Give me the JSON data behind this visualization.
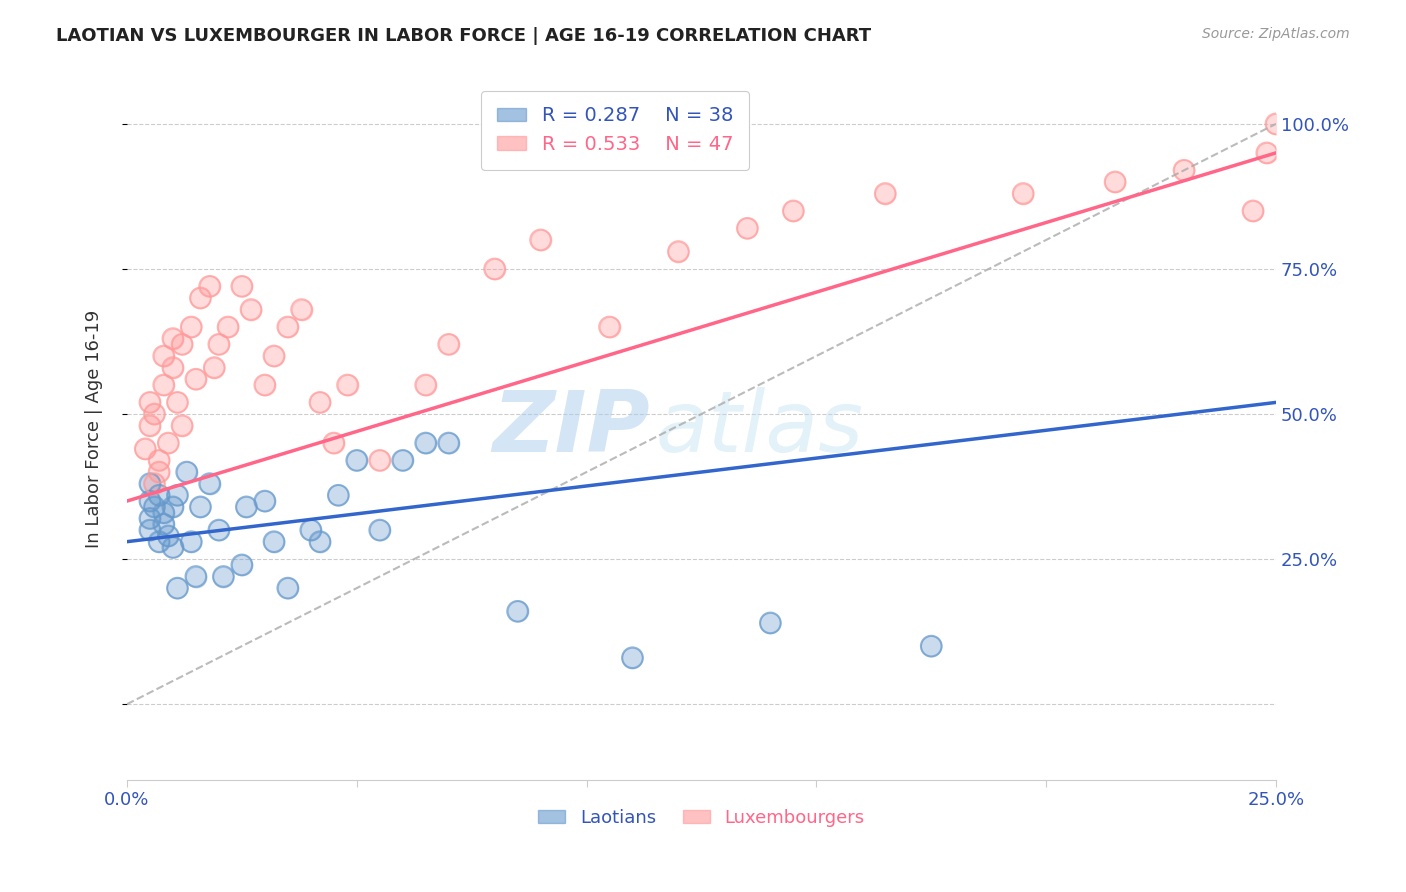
{
  "title": "LAOTIAN VS LUXEMBOURGER IN LABOR FORCE | AGE 16-19 CORRELATION CHART",
  "source": "Source: ZipAtlas.com",
  "ylabel": "In Labor Force | Age 16-19",
  "xmin": 0.0,
  "xmax": 0.25,
  "ymin": -0.13,
  "ymax": 1.08,
  "yticks": [
    0.0,
    0.25,
    0.5,
    0.75,
    1.0
  ],
  "ytick_labels": [
    "",
    "25.0%",
    "50.0%",
    "75.0%",
    "100.0%"
  ],
  "xticks": [
    0.0,
    0.05,
    0.1,
    0.15,
    0.2,
    0.25
  ],
  "xtick_labels": [
    "0.0%",
    "",
    "",
    "",
    "",
    "25.0%"
  ],
  "legend_r1": "R = 0.287",
  "legend_n1": "N = 38",
  "legend_r2": "R = 0.533",
  "legend_n2": "N = 47",
  "blue_color": "#6699CC",
  "pink_color": "#FF9999",
  "axis_color": "#3355BB",
  "watermark_zip": "ZIP",
  "watermark_atlas": "atlas",
  "blue_scatter_x": [
    0.005,
    0.005,
    0.005,
    0.005,
    0.006,
    0.007,
    0.007,
    0.008,
    0.008,
    0.009,
    0.01,
    0.01,
    0.011,
    0.011,
    0.013,
    0.014,
    0.015,
    0.016,
    0.018,
    0.02,
    0.021,
    0.025,
    0.026,
    0.03,
    0.032,
    0.035,
    0.04,
    0.042,
    0.046,
    0.05,
    0.055,
    0.06,
    0.065,
    0.07,
    0.085,
    0.11,
    0.14,
    0.175
  ],
  "blue_scatter_y": [
    0.32,
    0.38,
    0.35,
    0.3,
    0.34,
    0.28,
    0.36,
    0.33,
    0.31,
    0.29,
    0.34,
    0.27,
    0.2,
    0.36,
    0.4,
    0.28,
    0.22,
    0.34,
    0.38,
    0.3,
    0.22,
    0.24,
    0.34,
    0.35,
    0.28,
    0.2,
    0.3,
    0.28,
    0.36,
    0.42,
    0.3,
    0.42,
    0.45,
    0.45,
    0.16,
    0.08,
    0.14,
    0.1
  ],
  "pink_scatter_x": [
    0.004,
    0.005,
    0.005,
    0.006,
    0.006,
    0.007,
    0.007,
    0.008,
    0.008,
    0.009,
    0.01,
    0.01,
    0.011,
    0.012,
    0.012,
    0.014,
    0.015,
    0.016,
    0.018,
    0.019,
    0.02,
    0.022,
    0.025,
    0.027,
    0.03,
    0.032,
    0.035,
    0.038,
    0.042,
    0.045,
    0.048,
    0.055,
    0.065,
    0.07,
    0.08,
    0.09,
    0.105,
    0.12,
    0.135,
    0.145,
    0.165,
    0.195,
    0.215,
    0.23,
    0.245,
    0.248,
    0.25
  ],
  "pink_scatter_y": [
    0.44,
    0.48,
    0.52,
    0.38,
    0.5,
    0.4,
    0.42,
    0.55,
    0.6,
    0.45,
    0.58,
    0.63,
    0.52,
    0.48,
    0.62,
    0.65,
    0.56,
    0.7,
    0.72,
    0.58,
    0.62,
    0.65,
    0.72,
    0.68,
    0.55,
    0.6,
    0.65,
    0.68,
    0.52,
    0.45,
    0.55,
    0.42,
    0.55,
    0.62,
    0.75,
    0.8,
    0.65,
    0.78,
    0.82,
    0.85,
    0.88,
    0.88,
    0.9,
    0.92,
    0.85,
    0.95,
    1.0
  ],
  "blue_line_x": [
    0.0,
    0.25
  ],
  "blue_line_y": [
    0.28,
    0.52
  ],
  "pink_line_x": [
    0.0,
    0.25
  ],
  "pink_line_y": [
    0.35,
    0.95
  ],
  "diag_line_x": [
    0.0,
    0.25
  ],
  "diag_line_y": [
    0.0,
    1.0
  ]
}
